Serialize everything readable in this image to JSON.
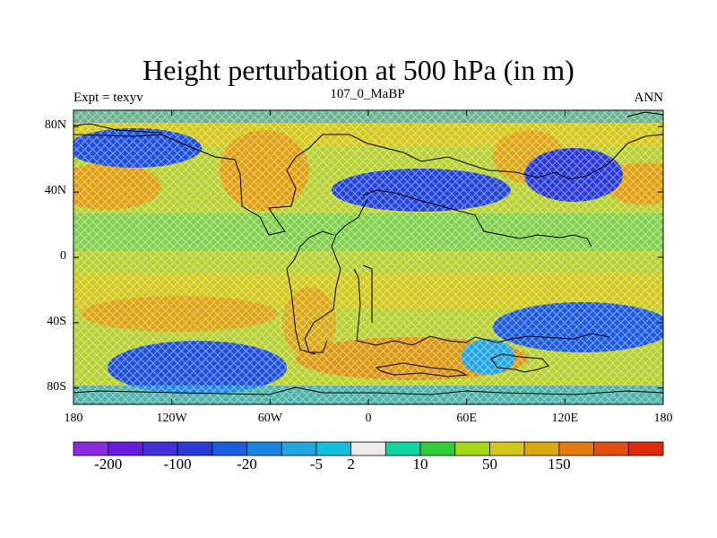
{
  "header": {
    "title": "Height perturbation at 500 hPa (in m)",
    "left": "Expt = texyv",
    "center": "107_0_MaBP",
    "right": "ANN"
  },
  "map": {
    "lat_labels": [
      "80N",
      "40N",
      "0",
      "40S",
      "80S"
    ],
    "lat_values": [
      80,
      40,
      0,
      -40,
      -80
    ],
    "lon_labels": [
      "180",
      "120W",
      "60W",
      "0",
      "60E",
      "120E",
      "180"
    ],
    "lon_values": [
      -180,
      -120,
      -60,
      0,
      60,
      120,
      180
    ]
  },
  "colorbar": {
    "colors": [
      "#8a2be2",
      "#6a1ae0",
      "#4430d8",
      "#2a3ad6",
      "#1a5ce0",
      "#1a86e0",
      "#22a6e0",
      "#10c0dc",
      "#ececec",
      "#10d6a0",
      "#30cc3a",
      "#a6d81a",
      "#d4c81a",
      "#dca810",
      "#e27a10",
      "#e25010",
      "#e02a10"
    ],
    "labels": [
      "-200",
      "-100",
      "-20",
      "-5",
      "2",
      "10",
      "50",
      "150"
    ],
    "label_after_box": [
      1,
      3,
      5,
      7,
      8,
      10,
      12,
      14
    ]
  }
}
